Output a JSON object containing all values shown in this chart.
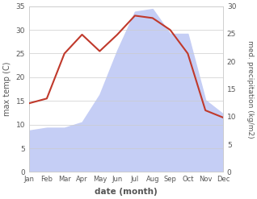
{
  "months": [
    "Jan",
    "Feb",
    "Mar",
    "Apr",
    "May",
    "Jun",
    "Jul",
    "Aug",
    "Sep",
    "Oct",
    "Nov",
    "Dec"
  ],
  "temp": [
    14.5,
    15.5,
    25.0,
    29.0,
    25.5,
    29.0,
    33.0,
    32.5,
    30.0,
    25.0,
    13.0,
    11.5
  ],
  "precip": [
    7.5,
    8.0,
    8.0,
    9.0,
    14.0,
    22.0,
    29.0,
    29.5,
    25.0,
    25.0,
    13.0,
    10.5
  ],
  "temp_color": "#c0392b",
  "precip_fill_color": "#c5cef5",
  "temp_ylim": [
    0,
    35
  ],
  "precip_ylim": [
    0,
    30
  ],
  "temp_yticks": [
    0,
    5,
    10,
    15,
    20,
    25,
    30,
    35
  ],
  "precip_yticks": [
    0,
    5,
    10,
    15,
    20,
    25,
    30
  ],
  "xlabel": "date (month)",
  "ylabel_left": "max temp (C)",
  "ylabel_right": "med. precipitation (kg/m2)",
  "bg_color": "#ffffff",
  "text_color": "#555555",
  "grid_color": "#cccccc"
}
